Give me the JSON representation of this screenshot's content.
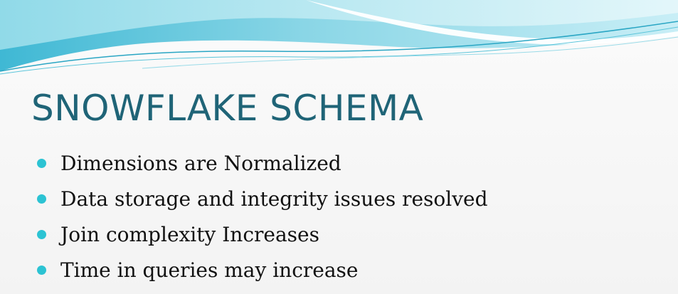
{
  "slide": {
    "title": "SNOWFLAKE SCHEMA",
    "bullets": [
      "Dimensions are Normalized",
      "Data storage and integrity issues resolved",
      "Join complexity Increases",
      "Time in queries may increase"
    ]
  },
  "colors": {
    "title": "#1f6477",
    "bullet_dot": "#2cc3d3",
    "wave_light": "#d9f3f8",
    "wave_mid": "#7fd3e4",
    "wave_dark": "#2aa6c4"
  }
}
